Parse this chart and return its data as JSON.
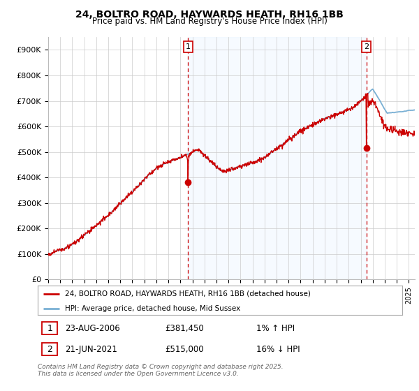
{
  "title": "24, BOLTRO ROAD, HAYWARDS HEATH, RH16 1BB",
  "subtitle": "Price paid vs. HM Land Registry's House Price Index (HPI)",
  "ylabel_ticks": [
    "£0",
    "£100K",
    "£200K",
    "£300K",
    "£400K",
    "£500K",
    "£600K",
    "£700K",
    "£800K",
    "£900K"
  ],
  "ytick_values": [
    0,
    100000,
    200000,
    300000,
    400000,
    500000,
    600000,
    700000,
    800000,
    900000
  ],
  "ylim": [
    0,
    950000
  ],
  "xlim_start": 1995.0,
  "xlim_end": 2025.5,
  "sale1_date": 2006.645,
  "sale1_price": 381450,
  "sale1_text": "23-AUG-2006",
  "sale1_price_text": "£381,450",
  "sale1_hpi_text": "1% ↑ HPI",
  "sale2_date": 2021.472,
  "sale2_price": 515000,
  "sale2_text": "21-JUN-2021",
  "sale2_price_text": "£515,000",
  "sale2_hpi_text": "16% ↓ HPI",
  "hpi_line_color": "#7ab0d4",
  "price_line_color": "#cc0000",
  "dashed_line_color": "#cc0000",
  "shade_color": "#ddeeff",
  "background_color": "#ffffff",
  "grid_color": "#cccccc",
  "legend_label_price": "24, BOLTRO ROAD, HAYWARDS HEATH, RH16 1BB (detached house)",
  "legend_label_hpi": "HPI: Average price, detached house, Mid Sussex",
  "footer_text": "Contains HM Land Registry data © Crown copyright and database right 2025.\nThis data is licensed under the Open Government Licence v3.0.",
  "title_fontsize": 10,
  "subtitle_fontsize": 8.5,
  "axis_fontsize": 8,
  "legend_fontsize": 7.5,
  "footer_fontsize": 6.5
}
